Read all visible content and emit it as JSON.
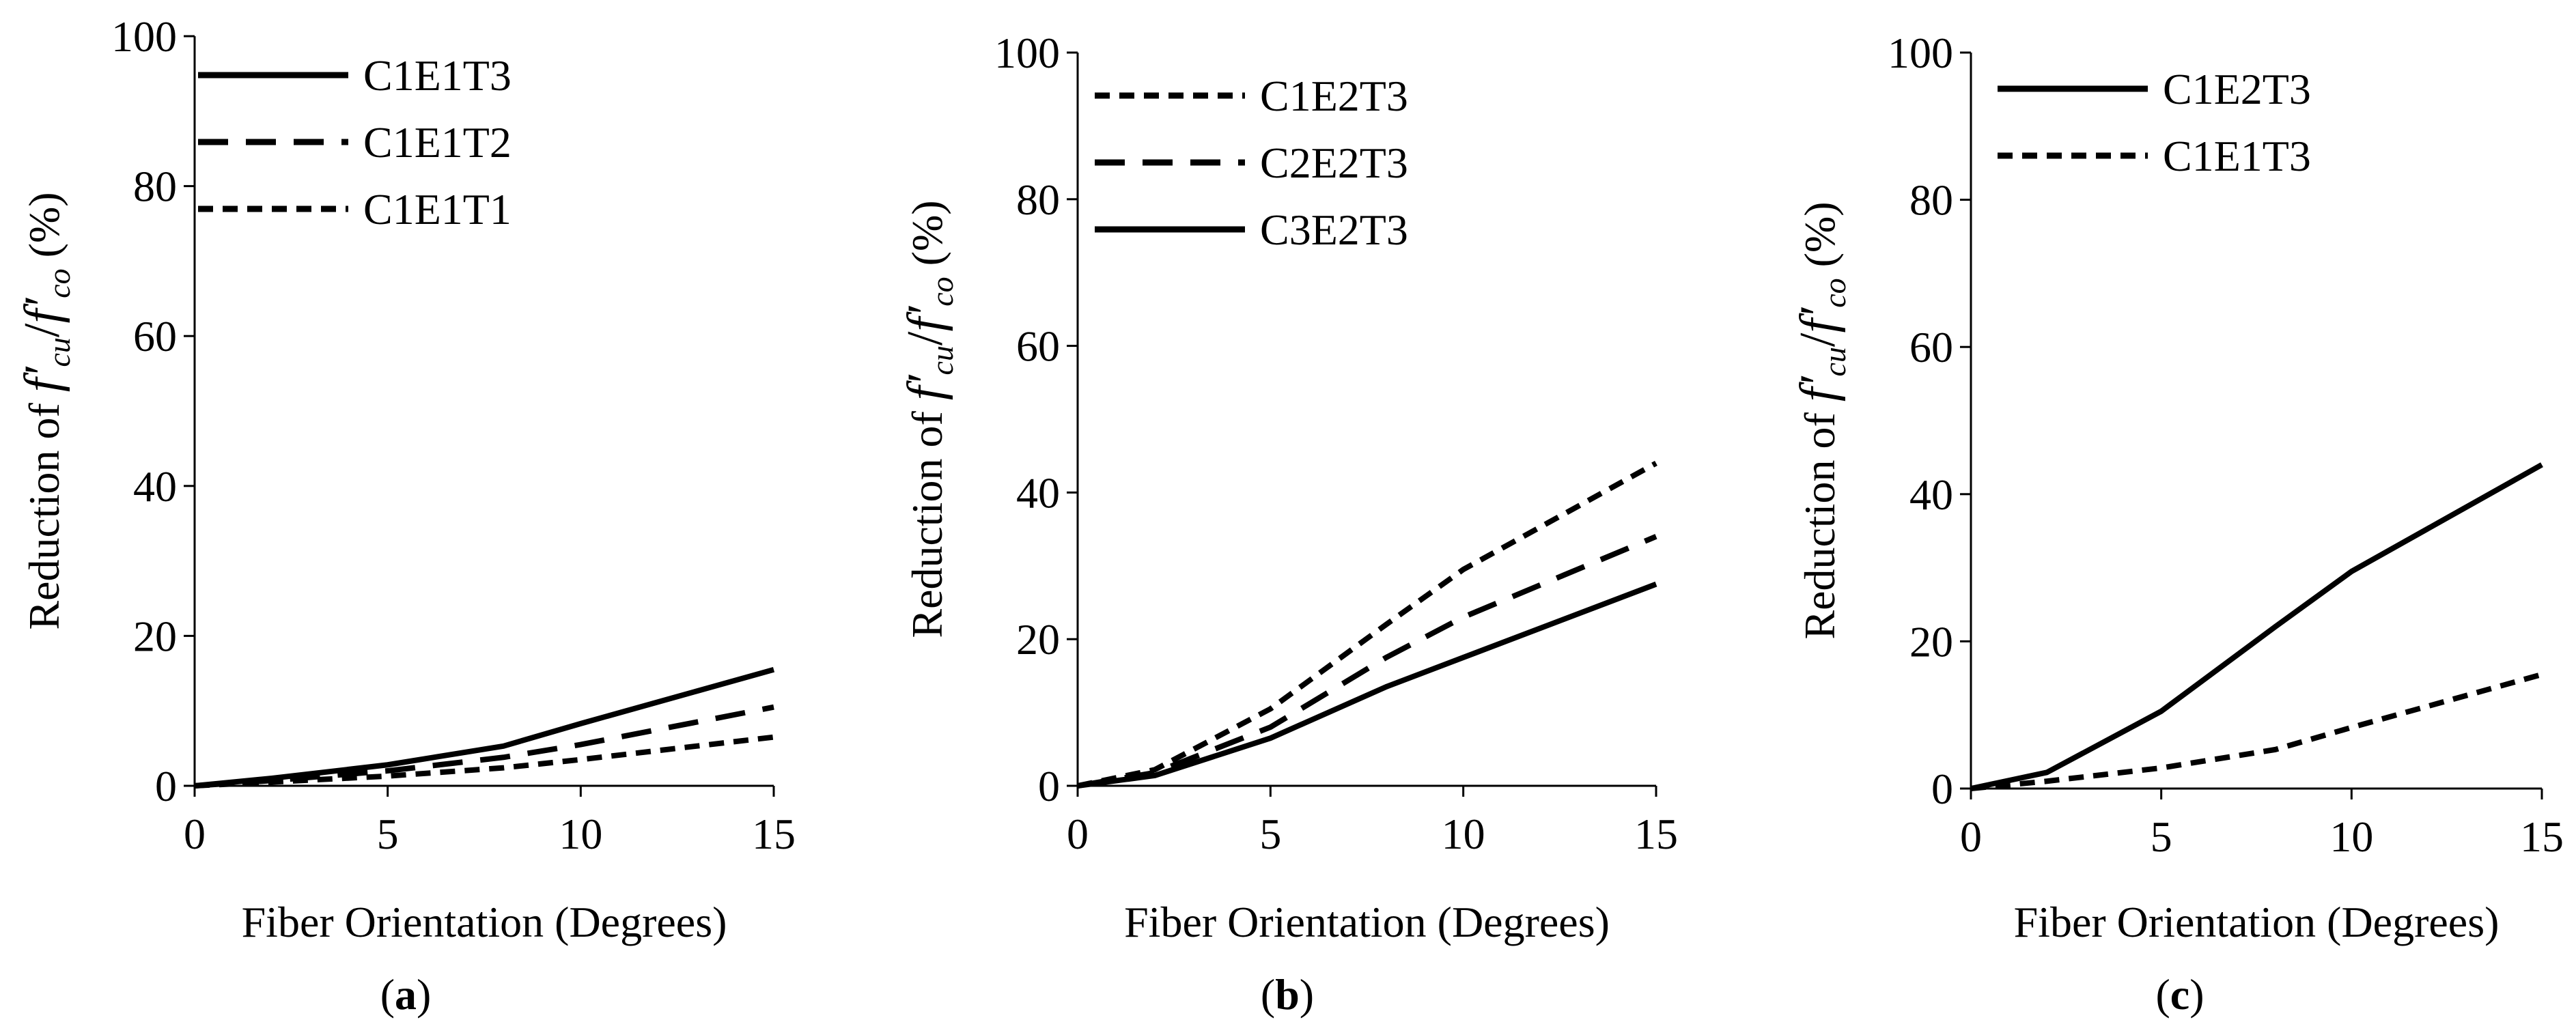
{
  "chart_data": [
    {
      "type": "line",
      "panel_label": "a",
      "title": "",
      "xlabel": "Fiber Orientation (Degrees)",
      "ylabel": "Reduction of f′cu/f′co (%)",
      "ylabel_parts": [
        "Reduction of ",
        "f′",
        "cu",
        "/",
        "f′",
        "co",
        "  (%)"
      ],
      "xlim": [
        0,
        15
      ],
      "ylim": [
        0,
        100
      ],
      "xticks": [
        0,
        5,
        10,
        15
      ],
      "yticks": [
        0,
        20,
        40,
        60,
        80,
        100
      ],
      "grid": false,
      "legend_position": "top-left",
      "series": [
        {
          "name": "C1E1T3",
          "style": "solid",
          "x": [
            0,
            2,
            5,
            8,
            10,
            15
          ],
          "values": [
            0,
            1.0,
            2.8,
            5.3,
            8.3,
            15.5
          ]
        },
        {
          "name": "C1E1T2",
          "style": "dashed",
          "x": [
            0,
            2,
            5,
            8,
            10,
            15
          ],
          "values": [
            0,
            0.7,
            2.0,
            3.8,
            5.5,
            10.5
          ]
        },
        {
          "name": "C1E1T1",
          "style": "dotted",
          "x": [
            0,
            2,
            5,
            8,
            10,
            15
          ],
          "values": [
            0,
            0.5,
            1.3,
            2.4,
            3.5,
            6.5
          ]
        }
      ]
    },
    {
      "type": "line",
      "panel_label": "b",
      "title": "",
      "xlabel": "Fiber Orientation (Degrees)",
      "ylabel": "Reduction of f′cu/f′co (%)",
      "ylabel_parts": [
        "Reduction of ",
        "f′",
        "cu",
        "/",
        "f′",
        "co",
        "  (%)"
      ],
      "xlim": [
        0,
        15
      ],
      "ylim": [
        0,
        100
      ],
      "xticks": [
        0,
        5,
        10,
        15
      ],
      "yticks": [
        0,
        20,
        40,
        60,
        80,
        100
      ],
      "grid": false,
      "legend_position": "top-left",
      "series": [
        {
          "name": "C1E2T3",
          "style": "dotted",
          "x": [
            0,
            2,
            5,
            8,
            10,
            15
          ],
          "values": [
            0,
            2.2,
            10.5,
            22,
            29.5,
            44
          ]
        },
        {
          "name": "C2E2T3",
          "style": "dashed",
          "x": [
            0,
            2,
            5,
            8,
            10,
            15
          ],
          "values": [
            0,
            1.8,
            8.0,
            17.5,
            23,
            34
          ]
        },
        {
          "name": "C3E2T3",
          "style": "solid",
          "x": [
            0,
            2,
            5,
            8,
            10,
            15
          ],
          "values": [
            0,
            1.4,
            6.5,
            13.5,
            17.5,
            27.5
          ]
        }
      ]
    },
    {
      "type": "line",
      "panel_label": "c",
      "title": "",
      "xlabel": "Fiber Orientation (Degrees)",
      "ylabel": "Reduction of f′cu/f′co (%)",
      "ylabel_parts": [
        "Reduction of ",
        "f′",
        "cu",
        "/",
        "f′",
        "co",
        "  (%)"
      ],
      "xlim": [
        0,
        15
      ],
      "ylim": [
        0,
        100
      ],
      "xticks": [
        0,
        5,
        10,
        15
      ],
      "yticks": [
        0,
        20,
        40,
        60,
        80,
        100
      ],
      "grid": false,
      "legend_position": "top-left",
      "series": [
        {
          "name": "C1E2T3",
          "style": "solid",
          "x": [
            0,
            2,
            5,
            8,
            10,
            15
          ],
          "values": [
            0,
            2.2,
            10.5,
            22,
            29.5,
            44
          ]
        },
        {
          "name": "C1E1T3",
          "style": "dotted",
          "x": [
            0,
            2,
            5,
            8,
            10,
            15
          ],
          "values": [
            0,
            1.0,
            2.8,
            5.3,
            8.3,
            15.5
          ]
        }
      ]
    }
  ]
}
